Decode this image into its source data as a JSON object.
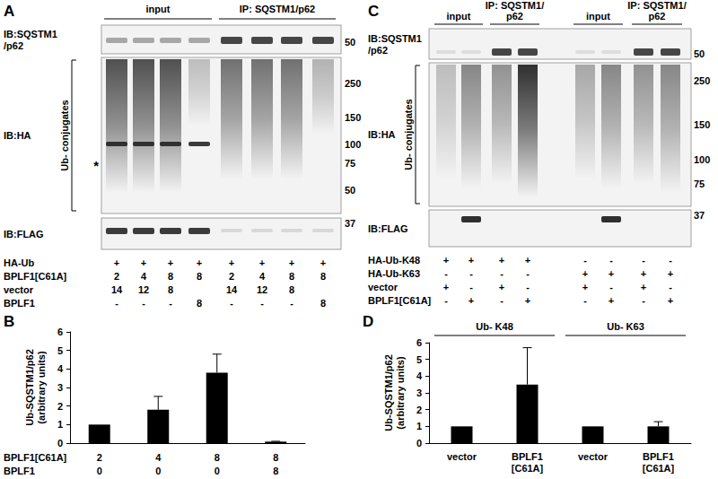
{
  "figure": {
    "blots": [
      {
        "panel": "A",
        "headers": [
          {
            "label": "input",
            "lanes": 4
          },
          {
            "label": "IP: SQSTM1/p62",
            "lanes": 4
          }
        ],
        "rows": [
          {
            "label": "IB:SQSTM1\n/p62",
            "markers": [
              50
            ]
          },
          {
            "label": "IB:HA",
            "bracket": "Ub- conjugates",
            "markers": [
              250,
              150,
              100,
              75,
              50
            ],
            "annotation": {
              "label": "*",
              "at": 75
            }
          },
          {
            "label": "IB:FLAG",
            "markers": [
              37
            ]
          }
        ],
        "conditions": [
          {
            "label": "HA-Ub",
            "values": [
              "+",
              "+",
              "+",
              "+",
              "+",
              "+",
              "+",
              "+"
            ]
          },
          {
            "label": "BPLF1[C61A]",
            "values": [
              "2",
              "4",
              "8",
              "8",
              "2",
              "4",
              "8",
              "8"
            ]
          },
          {
            "label": "vector",
            "values": [
              "14",
              "12",
              "8",
              null,
              "14",
              "12",
              "8",
              null
            ]
          },
          {
            "label": "BPLF1",
            "values": [
              "-",
              "-",
              "-",
              "8",
              "-",
              "-",
              "-",
              "8"
            ]
          }
        ]
      },
      {
        "panel": "C",
        "headers": [
          {
            "label": "input",
            "lanes": 2
          },
          {
            "label": "IP: SQSTM1/\np62",
            "lanes": 2
          },
          {
            "label": "input",
            "lanes": 2
          },
          {
            "label": "IP: SQSTM1/\np62",
            "lanes": 2
          }
        ],
        "rows": [
          {
            "label": "IB:SQSTM1\n/p62",
            "markers": [
              50
            ]
          },
          {
            "label": "IB:HA",
            "bracket": "Ub- conjugates",
            "markers": [
              250,
              150,
              100,
              75
            ]
          },
          {
            "label": "IB:FLAG",
            "markers": [
              37
            ]
          }
        ],
        "conditions": [
          {
            "label": "HA-Ub-K48",
            "values": [
              "+",
              "+",
              "+",
              "+",
              "-",
              "-",
              "-",
              "-"
            ]
          },
          {
            "label": "HA-Ub-K63",
            "values": [
              "-",
              "-",
              "-",
              "-",
              "+",
              "+",
              "+",
              "+"
            ]
          },
          {
            "label": "vector",
            "values": [
              "+",
              "-",
              "+",
              "-",
              "+",
              "-",
              "+",
              "-"
            ]
          },
          {
            "label": "BPLF1[C61A]",
            "values": [
              "-",
              "+",
              "-",
              "+",
              "-",
              "+",
              "-",
              "+"
            ]
          }
        ]
      }
    ]
  },
  "chart_data": [
    {
      "panel": "B",
      "type": "bar",
      "y_label": "Ub-SQSTM1/p62\n(arbitrary units)",
      "x_table": {
        "rows": [
          {
            "label": "BPLF1[C61A]",
            "values": [
              2,
              4,
              8,
              8
            ]
          },
          {
            "label": "BPLF1",
            "values": [
              0,
              0,
              0,
              8
            ]
          }
        ]
      },
      "values": [
        1,
        1.8,
        3.8,
        0.08
      ],
      "errors": [
        0,
        0.72,
        1.0,
        0.02
      ],
      "color": "#000000",
      "ylim": [
        0,
        6
      ],
      "yticks": [
        0,
        1,
        2,
        3,
        4,
        5,
        6
      ],
      "grid": false
    },
    {
      "panel": "D",
      "type": "bar",
      "y_label": "Ub-SQSTM1/p62\n(arbitrary units)",
      "categories": [
        "vector",
        "BPLF1\n[C61A]",
        "vector",
        "BPLF1\n[C61A]"
      ],
      "groups": [
        {
          "label": "Ub- K48",
          "size": 2
        },
        {
          "label": "Ub- K63",
          "size": 2
        }
      ],
      "values": [
        1,
        3.5,
        1,
        1.0
      ],
      "errors": [
        0,
        2.2,
        0,
        0.28
      ],
      "color": "#000000",
      "ylim": [
        0,
        6
      ],
      "yticks": [
        0,
        1,
        2,
        3,
        4,
        5,
        6
      ],
      "grid": false
    }
  ]
}
